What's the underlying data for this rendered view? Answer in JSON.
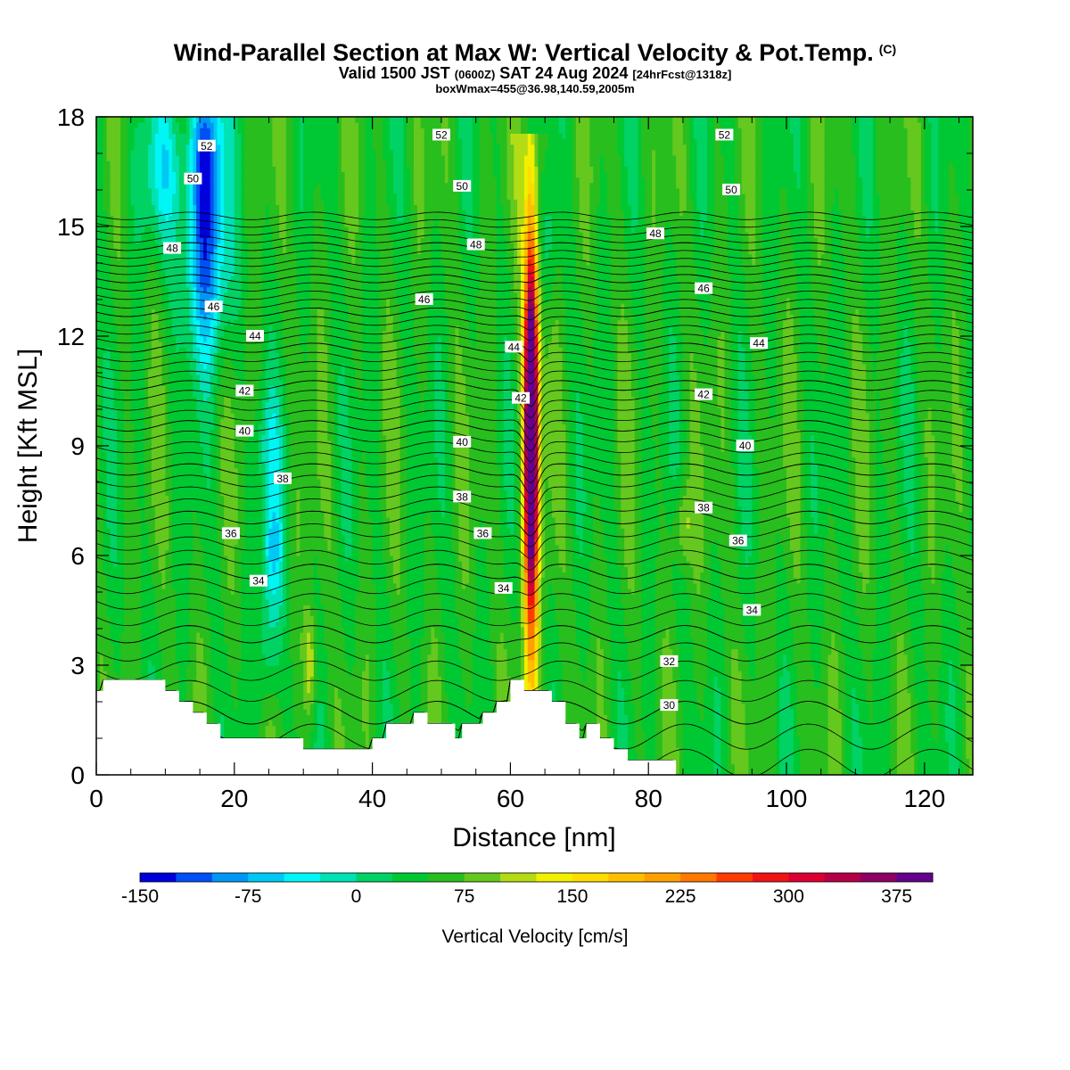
{
  "title": {
    "main": "Wind-Parallel Section at Max W: Vertical Velocity & Pot.Temp.",
    "copyright": "(C)",
    "valid_a": "Valid 1500 JST ",
    "valid_b": "(0600Z)",
    "valid_c": " SAT 24 Aug 2024 ",
    "valid_d": "[24hrFcst@1318z]",
    "box": "boxWmax=455@36.98,140.59,2005m"
  },
  "chart_data": {
    "type": "heatmap",
    "xlabel": "Distance [nm]",
    "ylabel": "Height [Kft MSL]",
    "xlim": [
      0,
      127
    ],
    "ylim": [
      0,
      18
    ],
    "x_ticks": [
      0,
      20,
      40,
      60,
      80,
      100,
      120
    ],
    "y_ticks": [
      0,
      3,
      6,
      9,
      12,
      15,
      18
    ],
    "colorbar": {
      "label": "Vertical Velocity [cm/s]",
      "tick_values": [
        "-150",
        "-75",
        "0",
        "75",
        "150",
        "225",
        "300",
        "375"
      ],
      "colors": [
        "#0000dc",
        "#0050f5",
        "#0096f5",
        "#00c8f5",
        "#00f5f5",
        "#00e1b4",
        "#00d264",
        "#00c832",
        "#28be1e",
        "#64c81e",
        "#b4dc14",
        "#f0f000",
        "#ffdc00",
        "#ffbe00",
        "#ffa000",
        "#ff7800",
        "#ff3c00",
        "#f01414",
        "#dc0032",
        "#b40046",
        "#8c0064",
        "#64008c"
      ]
    },
    "updraft_max_cm_s": 455,
    "updraft_core_x_nm": 63,
    "theta_contours": {
      "levels": [
        30,
        32,
        34,
        36,
        38,
        40,
        42,
        44,
        46,
        48,
        50,
        52
      ],
      "labels": [
        {
          "text": "52",
          "x": 16,
          "y": 17.2
        },
        {
          "text": "50",
          "x": 14,
          "y": 16.3
        },
        {
          "text": "48",
          "x": 11,
          "y": 14.4
        },
        {
          "text": "46",
          "x": 17,
          "y": 12.8
        },
        {
          "text": "44",
          "x": 23,
          "y": 12.0
        },
        {
          "text": "42",
          "x": 21.5,
          "y": 10.5
        },
        {
          "text": "40",
          "x": 21.5,
          "y": 9.4
        },
        {
          "text": "38",
          "x": 27,
          "y": 8.1
        },
        {
          "text": "36",
          "x": 19.5,
          "y": 6.6
        },
        {
          "text": "34",
          "x": 23.5,
          "y": 5.3
        },
        {
          "text": "52",
          "x": 50,
          "y": 17.5
        },
        {
          "text": "50",
          "x": 53,
          "y": 16.1
        },
        {
          "text": "48",
          "x": 55,
          "y": 14.5
        },
        {
          "text": "46",
          "x": 47.5,
          "y": 13.0
        },
        {
          "text": "44",
          "x": 60.5,
          "y": 11.7
        },
        {
          "text": "42",
          "x": 61.5,
          "y": 10.3
        },
        {
          "text": "40",
          "x": 53,
          "y": 9.1
        },
        {
          "text": "38",
          "x": 53,
          "y": 7.6
        },
        {
          "text": "36",
          "x": 56,
          "y": 6.6
        },
        {
          "text": "34",
          "x": 59,
          "y": 5.1
        },
        {
          "text": "52",
          "x": 91,
          "y": 17.5
        },
        {
          "text": "50",
          "x": 92,
          "y": 16.0
        },
        {
          "text": "48",
          "x": 81,
          "y": 14.8
        },
        {
          "text": "46",
          "x": 88,
          "y": 13.3
        },
        {
          "text": "44",
          "x": 96,
          "y": 11.8
        },
        {
          "text": "42",
          "x": 88,
          "y": 10.4
        },
        {
          "text": "40",
          "x": 94,
          "y": 9.0
        },
        {
          "text": "38",
          "x": 88,
          "y": 7.3
        },
        {
          "text": "36",
          "x": 93,
          "y": 6.4
        },
        {
          "text": "34",
          "x": 95,
          "y": 4.5
        },
        {
          "text": "32",
          "x": 83,
          "y": 3.1
        },
        {
          "text": "30",
          "x": 83,
          "y": 1.9
        }
      ]
    },
    "terrain_kft": [
      [
        0,
        2.3
      ],
      [
        1,
        2.3
      ],
      [
        1,
        2.6
      ],
      [
        10,
        2.6
      ],
      [
        10,
        2.3
      ],
      [
        12,
        2.3
      ],
      [
        12,
        2.0
      ],
      [
        14,
        2.0
      ],
      [
        14,
        1.7
      ],
      [
        16,
        1.7
      ],
      [
        16,
        1.4
      ],
      [
        18,
        1.4
      ],
      [
        18,
        1.0
      ],
      [
        20,
        1.0
      ],
      [
        20,
        1.0
      ],
      [
        26,
        1.0
      ],
      [
        30,
        1.0
      ],
      [
        30,
        0.7
      ],
      [
        40,
        0.7
      ],
      [
        40,
        1.0
      ],
      [
        42,
        1.0
      ],
      [
        42,
        1.4
      ],
      [
        46,
        1.4
      ],
      [
        46,
        1.7
      ],
      [
        48,
        1.7
      ],
      [
        48,
        1.4
      ],
      [
        52,
        1.4
      ],
      [
        52,
        1.0
      ],
      [
        53,
        1.0
      ],
      [
        53,
        1.4
      ],
      [
        56,
        1.4
      ],
      [
        56,
        1.7
      ],
      [
        58,
        1.7
      ],
      [
        58,
        2.0
      ],
      [
        60,
        2.0
      ],
      [
        60,
        2.6
      ],
      [
        62,
        2.6
      ],
      [
        62,
        2.3
      ],
      [
        66,
        2.3
      ],
      [
        66,
        2.0
      ],
      [
        68,
        2.0
      ],
      [
        68,
        1.4
      ],
      [
        70,
        1.4
      ],
      [
        70,
        1.0
      ],
      [
        71,
        1.0
      ],
      [
        71,
        1.4
      ],
      [
        73,
        1.4
      ],
      [
        73,
        1.0
      ],
      [
        75,
        1.0
      ],
      [
        75,
        0.7
      ],
      [
        77,
        0.7
      ],
      [
        77,
        0.4
      ],
      [
        84,
        0.4
      ],
      [
        84,
        0.0
      ]
    ]
  }
}
